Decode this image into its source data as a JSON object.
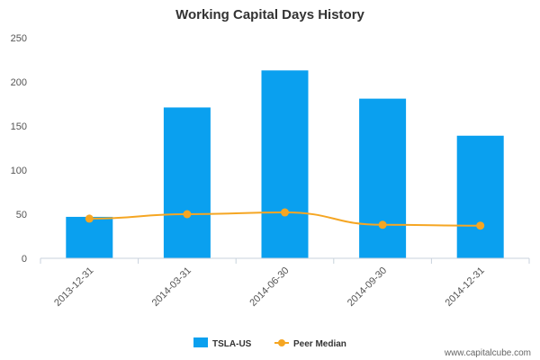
{
  "chart_data": {
    "type": "bar",
    "title": "Working Capital Days History",
    "categories": [
      "2013-12-31",
      "2014-03-31",
      "2014-06-30",
      "2014-09-30",
      "2014-12-31"
    ],
    "series": [
      {
        "name": "TSLA-US",
        "type": "bar",
        "color": "#0aa0ef",
        "values": [
          47,
          171,
          213,
          181,
          139
        ]
      },
      {
        "name": "Peer Median",
        "type": "line",
        "color": "#f5a623",
        "values": [
          45,
          50,
          52,
          38,
          37
        ]
      }
    ],
    "yticks": [
      0,
      50,
      100,
      150,
      200,
      250
    ],
    "ylim": [
      0,
      250
    ],
    "xlabel": "",
    "ylabel": "",
    "grid": false,
    "legend_position": "bottom-center"
  },
  "watermark": "www.capitalcube.com"
}
